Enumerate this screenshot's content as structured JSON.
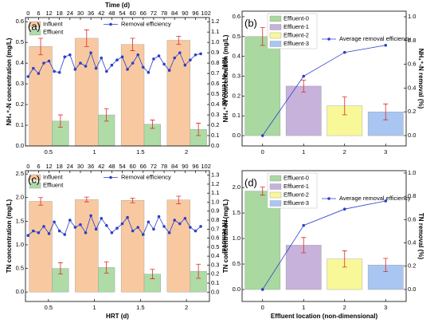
{
  "chart_data": [
    {
      "type": "bar",
      "label": "(a)",
      "x2label": "Time (d)",
      "ylabel": "NH₄⁺-N concentration (mg/L)",
      "y2label": "NH₄⁺-N removal",
      "categories": [
        "0.5",
        "1",
        "1.5",
        "2"
      ],
      "series": [
        {
          "name": "Influent",
          "color": "#f8c9a0",
          "values": [
            0.48,
            0.52,
            0.49,
            0.51
          ],
          "errors": [
            0.04,
            0.04,
            0.03,
            0.02
          ]
        },
        {
          "name": "Effluent",
          "color": "#aedba6",
          "values": [
            0.12,
            0.15,
            0.105,
            0.08
          ],
          "errors": [
            0.03,
            0.03,
            0.02,
            0.03
          ]
        }
      ],
      "line": {
        "name": "Removal efficiency",
        "color": "#2a3fc8",
        "axis": "y2",
        "x": [
          0,
          3,
          6,
          9,
          12,
          15,
          18,
          21,
          24,
          27,
          30,
          33,
          36,
          39,
          42,
          45,
          48,
          51,
          54,
          57,
          60,
          63,
          66,
          69,
          72,
          75,
          78,
          81,
          84,
          87,
          90,
          93,
          96,
          99
        ],
        "values": [
          0.67,
          0.75,
          0.7,
          0.8,
          0.82,
          0.72,
          0.71,
          0.86,
          0.88,
          0.74,
          0.8,
          0.77,
          0.9,
          0.75,
          0.85,
          0.72,
          0.78,
          0.83,
          0.86,
          0.74,
          0.8,
          0.88,
          0.76,
          0.71,
          0.84,
          0.87,
          0.79,
          0.73,
          0.85,
          0.9,
          0.78,
          0.83,
          0.88,
          0.89
        ]
      },
      "ylim": [
        0,
        0.62
      ],
      "yticks": [
        {
          "value": 0,
          "label": "0.0"
        },
        {
          "value": 0.1,
          "label": "0.1"
        },
        {
          "value": 0.2,
          "label": "0.2"
        },
        {
          "value": 0.3,
          "label": "0.3"
        },
        {
          "value": 0.4,
          "label": "0.4"
        },
        {
          "value": 0.5,
          "label": "0.5"
        },
        {
          "value": 0.6,
          "label": "0.6"
        }
      ],
      "y2lim": [
        0,
        1.24
      ],
      "y2ticks": [
        {
          "value": 0,
          "label": "0.0"
        },
        {
          "value": 0.1,
          "label": "0.1"
        },
        {
          "value": 0.2,
          "label": "0.2"
        },
        {
          "value": 0.3,
          "label": "0.3"
        },
        {
          "value": 0.4,
          "label": "0.4"
        },
        {
          "value": 0.5,
          "label": "0.5"
        },
        {
          "value": 0.6,
          "label": "0.6"
        },
        {
          "value": 0.7,
          "label": "0.7"
        },
        {
          "value": 0.8,
          "label": "0.8"
        },
        {
          "value": 0.9,
          "label": "0.9"
        },
        {
          "value": 1,
          "label": "1.0"
        },
        {
          "value": 1.1,
          "label": "1.1"
        },
        {
          "value": 1.2,
          "label": "1.2"
        }
      ],
      "x2lim": [
        -1.5,
        104
      ],
      "x2ticks": [
        0,
        6,
        12,
        18,
        24,
        30,
        36,
        42,
        48,
        54,
        60,
        66,
        72,
        78,
        84,
        90,
        96,
        102
      ]
    },
    {
      "type": "bar",
      "label": "(b)",
      "ylabel": "NH₄⁺-N concentration (mg/L)",
      "y2label": "NH₄⁺-N removal (%)",
      "categories": [
        "0",
        "1",
        "2",
        "3"
      ],
      "legend": [
        "Effluent-0",
        "Effluent-1",
        "Effluent-2",
        "Effluent-3"
      ],
      "colors": [
        "#a9d8a0",
        "#c6b2da",
        "#f8f898",
        "#a9c6f2"
      ],
      "values": [
        0.5,
        0.25,
        0.15,
        0.12
      ],
      "errors": [
        0.045,
        0.03,
        0.045,
        0.04
      ],
      "line": {
        "name": "Average removal efficiency",
        "color": "#2a3fc8",
        "axis": "y2",
        "values": [
          0,
          0.5,
          0.7,
          0.76
        ]
      },
      "ylim": [
        -0.052,
        0.628
      ],
      "yticks": [
        {
          "value": 0,
          "label": "0.0"
        },
        {
          "value": 0.1,
          "label": "0.1"
        },
        {
          "value": 0.2,
          "label": "0.2"
        },
        {
          "value": 0.3,
          "label": "0.3"
        },
        {
          "value": 0.4,
          "label": "0.4"
        },
        {
          "value": 0.5,
          "label": "0.5"
        },
        {
          "value": 0.6,
          "label": "0.6"
        }
      ],
      "y2lim": [
        -0.087,
        1.047
      ],
      "y2ticks": [
        {
          "value": 0,
          "label": "0.0"
        },
        {
          "value": 0.2,
          "label": "0.2"
        },
        {
          "value": 0.4,
          "label": "0.4"
        },
        {
          "value": 0.6,
          "label": "0.6"
        },
        {
          "value": 0.8,
          "label": "0.8"
        },
        {
          "value": 1,
          "label": "1.0"
        }
      ]
    },
    {
      "type": "bar",
      "label": "(c)",
      "xlabel": "HRT (d)",
      "ylabel": "TN concentration (mg/L)",
      "y2label": "TN removal",
      "categories": [
        "0.5",
        "1",
        "1.5",
        "2"
      ],
      "series": [
        {
          "name": "Influent",
          "color": "#f8c9a0",
          "values": [
            1.92,
            1.96,
            1.94,
            1.95
          ],
          "errors": [
            0.08,
            0.05,
            0.05,
            0.08
          ]
        },
        {
          "name": "Effluent",
          "color": "#aedba6",
          "values": [
            0.5,
            0.52,
            0.38,
            0.44
          ],
          "errors": [
            0.12,
            0.12,
            0.1,
            0.15
          ]
        }
      ],
      "line": {
        "name": "Removal efficiency",
        "color": "#2a3fc8",
        "axis": "y2",
        "x": [
          0,
          3,
          6,
          9,
          12,
          15,
          18,
          21,
          24,
          27,
          30,
          33,
          36,
          39,
          42,
          45,
          48,
          51,
          54,
          57,
          60,
          63,
          66,
          69,
          72,
          75,
          78,
          81,
          84,
          87,
          90,
          93,
          96,
          99
        ],
        "values": [
          0.63,
          0.68,
          0.66,
          0.73,
          0.65,
          0.78,
          0.68,
          0.64,
          0.8,
          0.72,
          0.75,
          0.66,
          0.85,
          0.7,
          0.82,
          0.74,
          0.66,
          0.71,
          0.76,
          0.83,
          0.68,
          0.72,
          0.64,
          0.78,
          0.7,
          0.84,
          0.73,
          0.66,
          0.8,
          0.76,
          0.82,
          0.72,
          0.68,
          0.73
        ]
      },
      "ylim": [
        -0.2,
        2.57
      ],
      "yticks": [
        {
          "value": 0,
          "label": "0.0"
        },
        {
          "value": 0.5,
          "label": "0.5"
        },
        {
          "value": 1,
          "label": "1.0"
        },
        {
          "value": 1.5,
          "label": "1.5"
        },
        {
          "value": 2,
          "label": "2.0"
        },
        {
          "value": 2.5,
          "label": "2.5"
        }
      ],
      "y2lim": [
        -0.104,
        1.35
      ],
      "y2ticks": [
        {
          "value": 0,
          "label": "0.0"
        },
        {
          "value": 0.1,
          "label": "0.1"
        },
        {
          "value": 0.2,
          "label": "0.2"
        },
        {
          "value": 0.3,
          "label": "0.3"
        },
        {
          "value": 0.4,
          "label": "0.4"
        },
        {
          "value": 0.5,
          "label": "0.5"
        },
        {
          "value": 0.6,
          "label": "0.6"
        },
        {
          "value": 0.7,
          "label": "0.7"
        },
        {
          "value": 0.8,
          "label": "0.8"
        },
        {
          "value": 0.9,
          "label": "0.9"
        },
        {
          "value": 1,
          "label": "1.0"
        },
        {
          "value": 1.1,
          "label": "1.1"
        },
        {
          "value": 1.2,
          "label": "1.2"
        },
        {
          "value": 1.3,
          "label": "1.3"
        }
      ],
      "x2lim": [
        -1.5,
        104
      ],
      "x2ticks": [
        0,
        6,
        12,
        18,
        24,
        30,
        36,
        42,
        48,
        54,
        60,
        66,
        72,
        78,
        84,
        90,
        96,
        102
      ]
    },
    {
      "type": "bar",
      "label": "(d)",
      "xlabel": "Effluent location (non-dimensional)",
      "ylabel": "TN concentration (mg/L)",
      "y2label": "TN removal (%)",
      "categories": [
        "0",
        "1",
        "2",
        "3"
      ],
      "legend": [
        "Effluent-0",
        "Effluent-1",
        "Effluent-2",
        "Effluent-3"
      ],
      "colors": [
        "#a9d8a0",
        "#c6b2da",
        "#f8f898",
        "#a9c6f2"
      ],
      "values": [
        1.93,
        0.87,
        0.6,
        0.48
      ],
      "errors": [
        0.08,
        0.15,
        0.16,
        0.13
      ],
      "line": {
        "name": "Average removal efficiency",
        "color": "#2a3fc8",
        "axis": "y2",
        "values": [
          0,
          0.55,
          0.69,
          0.76
        ]
      },
      "ylim": [
        -0.234,
        2.33
      ],
      "yticks": [
        {
          "value": 0,
          "label": "0.0"
        },
        {
          "value": 0.5,
          "label": "0.5"
        },
        {
          "value": 1,
          "label": "1.0"
        },
        {
          "value": 1.5,
          "label": "1.5"
        },
        {
          "value": 2,
          "label": "2.0"
        }
      ],
      "y2lim": [
        -0.103,
        1.02
      ],
      "y2ticks": [
        {
          "value": 0,
          "label": "0.0"
        },
        {
          "value": 0.2,
          "label": "0.2"
        },
        {
          "value": 0.4,
          "label": "0.4"
        },
        {
          "value": 0.6,
          "label": "0.6"
        },
        {
          "value": 0.8,
          "label": "0.8"
        },
        {
          "value": 1,
          "label": "1.0"
        }
      ]
    }
  ]
}
